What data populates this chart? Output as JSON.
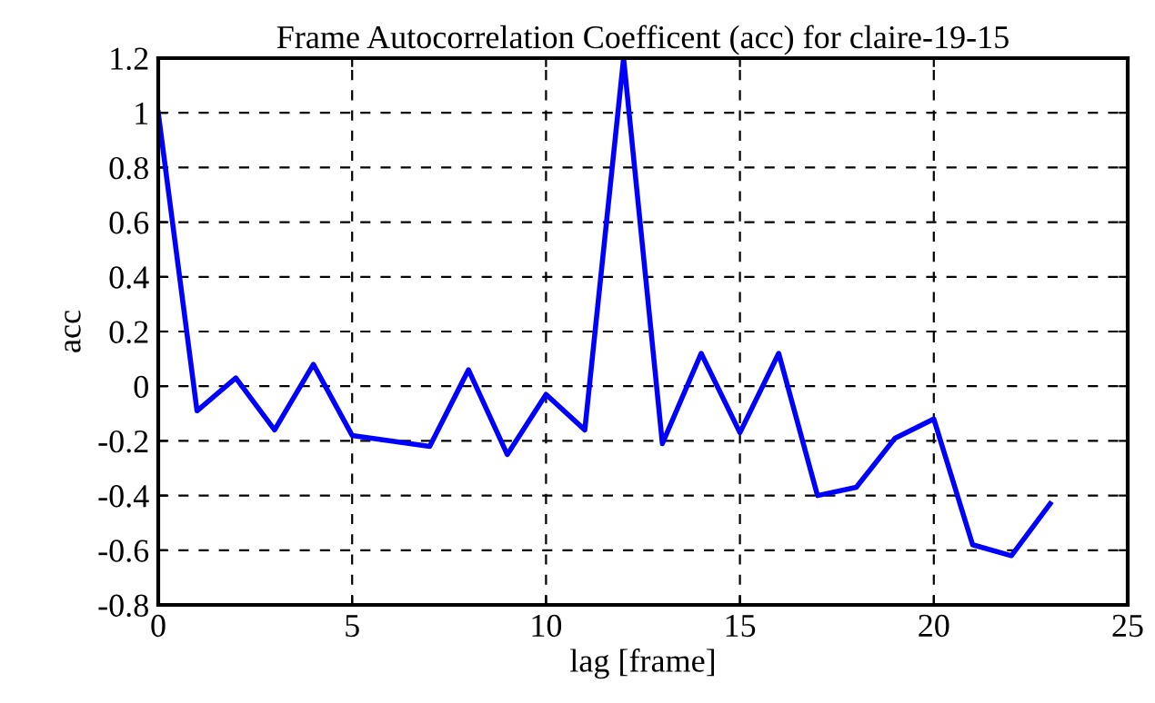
{
  "chart_data": {
    "type": "line",
    "title": "Frame Autocorrelation Coefficent (acc) for claire-19-15",
    "xlabel": "lag [frame]",
    "ylabel": "acc",
    "x": [
      0,
      1,
      2,
      3,
      4,
      5,
      6,
      7,
      8,
      9,
      10,
      11,
      12,
      13,
      14,
      15,
      16,
      17,
      18,
      19,
      20,
      21,
      22,
      23
    ],
    "series": [
      {
        "color": "#0000ff",
        "values": [
          1.0,
          -0.09,
          0.03,
          -0.16,
          0.08,
          -0.18,
          -0.2,
          -0.22,
          0.06,
          -0.25,
          -0.03,
          -0.16,
          1.2,
          -0.21,
          0.12,
          -0.17,
          0.12,
          -0.4,
          -0.37,
          -0.19,
          -0.12,
          -0.58,
          -0.62,
          -0.43
        ]
      }
    ],
    "xlim": [
      0,
      25
    ],
    "xticks": [
      0,
      5,
      10,
      15,
      20,
      25
    ],
    "ylim": [
      -0.8,
      1.2
    ],
    "yticks": [
      -0.8,
      -0.6,
      -0.4,
      -0.2,
      0,
      0.2,
      0.4,
      0.6,
      0.8,
      1,
      1.2
    ],
    "grid": true,
    "line_style": "solid"
  }
}
